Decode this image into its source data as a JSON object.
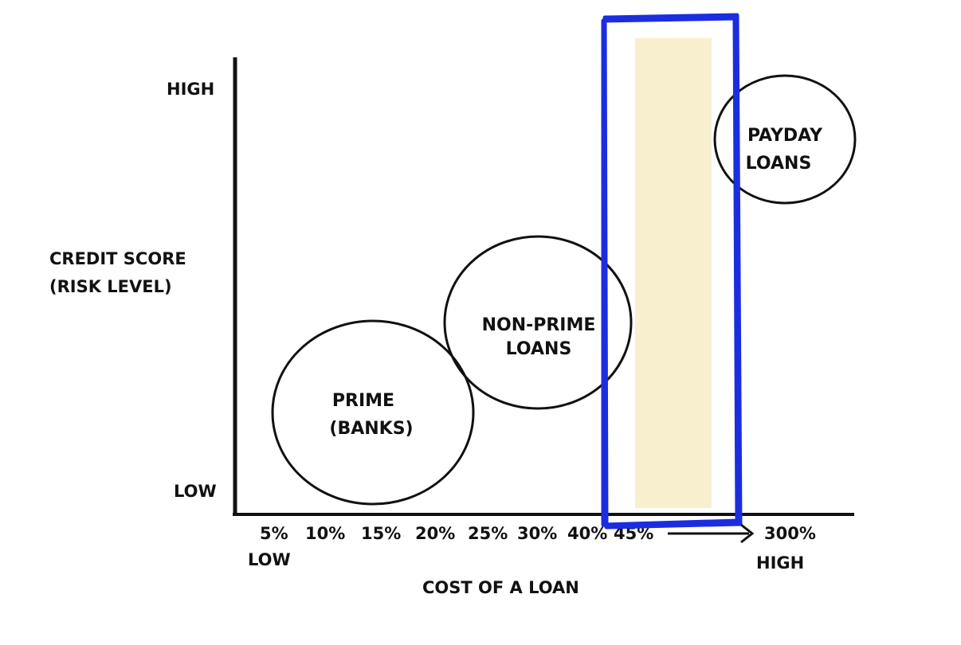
{
  "y_axis": {
    "high_label": "HIGH",
    "low_label": "LOW",
    "title_line1": "CREDIT SCORE",
    "title_line2": "(RISK LEVEL)"
  },
  "x_axis": {
    "ticks": [
      "5%",
      "10%",
      "15%",
      "20%",
      "25%",
      "30%",
      "40%",
      "45%",
      "300%"
    ],
    "low_label": "LOW",
    "high_label": "HIGH",
    "title": "COST OF A LOAN"
  },
  "bubbles": {
    "prime": {
      "line1": "PRIME",
      "line2": "(BANKS)"
    },
    "nonprime": {
      "line1": "NON-PRIME",
      "line2": "LOANS"
    },
    "payday": {
      "line1": "PAYDAY",
      "line2": "LOANS"
    }
  },
  "colors": {
    "highlight_outline": "#1a2ee0",
    "highlight_fill": "#f8efcf",
    "ink": "#111111"
  }
}
